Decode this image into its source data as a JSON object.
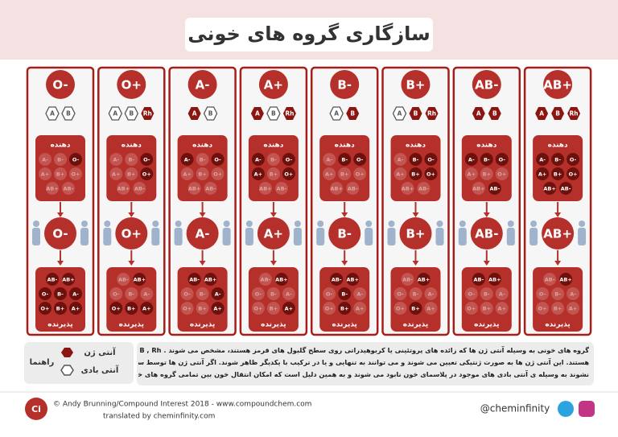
{
  "title": "سازگاری گروه های خونی",
  "donor_label": "دهنده",
  "recipient_label": "پذیرنده",
  "donor_grid": [
    "O-",
    "B-",
    "A-",
    "O+",
    "B+",
    "A+",
    "AB-",
    "AB+"
  ],
  "recipient_grid": [
    "AB-",
    "AB+",
    "O-",
    "B-",
    "A-",
    "O+",
    "B+",
    "A+"
  ],
  "columns": [
    {
      "type": "O-",
      "antigens": [
        {
          "label": "A",
          "present": false
        },
        {
          "label": "B",
          "present": false
        }
      ],
      "donors": [
        true,
        false,
        false,
        false,
        false,
        false,
        false,
        false
      ],
      "recipients": [
        true,
        true,
        true,
        true,
        true,
        true,
        true,
        true
      ]
    },
    {
      "type": "O+",
      "antigens": [
        {
          "label": "A",
          "present": false
        },
        {
          "label": "B",
          "present": false
        },
        {
          "label": "Rh",
          "present": true
        }
      ],
      "donors": [
        true,
        false,
        false,
        true,
        false,
        false,
        false,
        false
      ],
      "recipients": [
        false,
        true,
        false,
        false,
        false,
        true,
        true,
        true
      ]
    },
    {
      "type": "A-",
      "antigens": [
        {
          "label": "A",
          "present": true
        },
        {
          "label": "B",
          "present": false
        }
      ],
      "donors": [
        true,
        false,
        true,
        false,
        false,
        false,
        false,
        false
      ],
      "recipients": [
        true,
        true,
        false,
        false,
        true,
        false,
        false,
        true
      ]
    },
    {
      "type": "A+",
      "antigens": [
        {
          "label": "A",
          "present": true
        },
        {
          "label": "B",
          "present": false
        },
        {
          "label": "Rh",
          "present": true
        }
      ],
      "donors": [
        true,
        false,
        true,
        true,
        false,
        true,
        false,
        false
      ],
      "recipients": [
        false,
        true,
        false,
        false,
        false,
        false,
        false,
        true
      ]
    },
    {
      "type": "B-",
      "antigens": [
        {
          "label": "A",
          "present": false
        },
        {
          "label": "B",
          "present": true
        }
      ],
      "donors": [
        true,
        true,
        false,
        false,
        false,
        false,
        false,
        false
      ],
      "recipients": [
        true,
        true,
        false,
        true,
        false,
        false,
        true,
        false
      ]
    },
    {
      "type": "B+",
      "antigens": [
        {
          "label": "A",
          "present": false
        },
        {
          "label": "B",
          "present": true
        },
        {
          "label": "Rh",
          "present": true
        }
      ],
      "donors": [
        true,
        true,
        false,
        true,
        true,
        false,
        false,
        false
      ],
      "recipients": [
        false,
        true,
        false,
        false,
        false,
        false,
        true,
        false
      ]
    },
    {
      "type": "AB-",
      "antigens": [
        {
          "label": "A",
          "present": true
        },
        {
          "label": "B",
          "present": true
        }
      ],
      "donors": [
        true,
        true,
        true,
        false,
        false,
        false,
        true,
        false
      ],
      "recipients": [
        true,
        true,
        false,
        false,
        false,
        false,
        false,
        false
      ]
    },
    {
      "type": "AB+",
      "antigens": [
        {
          "label": "A",
          "present": true
        },
        {
          "label": "B",
          "present": true
        },
        {
          "label": "Rh",
          "present": true
        }
      ],
      "donors": [
        true,
        true,
        true,
        true,
        true,
        true,
        true,
        true
      ],
      "recipients": [
        false,
        true,
        false,
        false,
        false,
        false,
        false,
        false
      ]
    }
  ],
  "legend": {
    "title": "راهنما",
    "antigen": "آنتی ژن",
    "antibody": "آنتی بادی"
  },
  "description": [
    "گروه های خونی به وسیله آنتی ژن ها که زائده های پروتئینی یا کربوهیدراتی روی سطح گلبول های قرمز هستند، مشخص می شوند . A , B , Rh آنتی ژن های ممکن",
    "هستند. این آنتی ژن ها به صورت ژنتیکی تعیین می شوند و می توانند به تنهایی و یا در ترکیب با یکدیگر ظاهر شوند. اگر آنتی ژن ها توسط سیستم ایمنی بدن شناسایی",
    "نشوند به وسیله ی آنتی بادی های موجود در پلاسمای خون نابود می شوند و به همین دلیل است که امکان انتقال خون بین تمامی گروه های خونی میسر نیست"
  ],
  "footer": {
    "logo": "Ci",
    "credit": "© Andy Brunning/Compound Interest 2018 - www.compoundchem.com",
    "translator": "translated by cheminfinity.com",
    "handle": "@cheminfinity"
  }
}
